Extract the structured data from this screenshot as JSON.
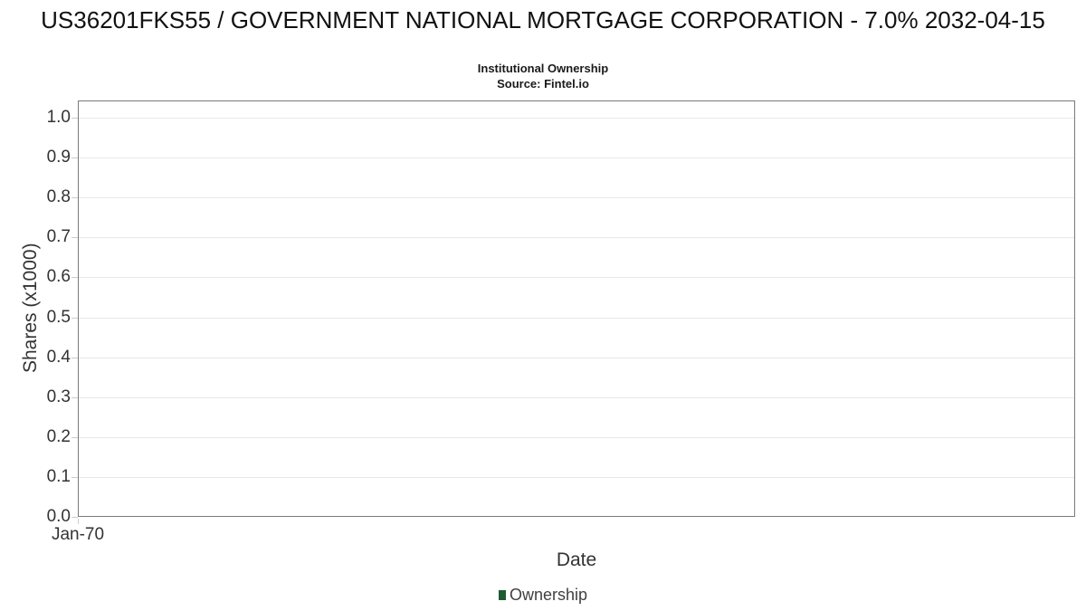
{
  "title": "US36201FKS55 / GOVERNMENT NATIONAL MORTGAGE CORPORATION - 7.0% 2032-04-15",
  "subtitle": "Institutional Ownership",
  "source": "Source: Fintel.io",
  "chart_data": {
    "type": "line",
    "title": "US36201FKS55 / GOVERNMENT NATIONAL MORTGAGE CORPORATION - 7.0% 2032-04-15",
    "subtitle": "Institutional Ownership",
    "source": "Source: Fintel.io",
    "xlabel": "Date",
    "ylabel": "Shares (x1000)",
    "ylim": [
      0.0,
      1.05
    ],
    "y_ticks": [
      0.0,
      0.1,
      0.2,
      0.3,
      0.4,
      0.5,
      0.6,
      0.7,
      0.8,
      0.9,
      1.0
    ],
    "y_tick_labels": [
      "0.0",
      "0.1",
      "0.2",
      "0.3",
      "0.4",
      "0.5",
      "0.6",
      "0.7",
      "0.8",
      "0.9",
      "1.0"
    ],
    "x_ticks": [
      {
        "label": "Jan-70",
        "fraction": 0.0
      }
    ],
    "grid": true,
    "legend_position": "bottom",
    "series": [
      {
        "name": "Ownership",
        "color": "#1e5b32",
        "x": [],
        "values": []
      }
    ]
  },
  "legend": {
    "items": [
      {
        "label": "Ownership",
        "color": "#1e5b32"
      }
    ]
  },
  "colors": {
    "plot_border": "#7a7a7a",
    "gridline": "#e8e8e8",
    "tick": "#cccccc",
    "text": "#333333",
    "title_text": "#111111",
    "ownership_green": "#1e5b32"
  }
}
